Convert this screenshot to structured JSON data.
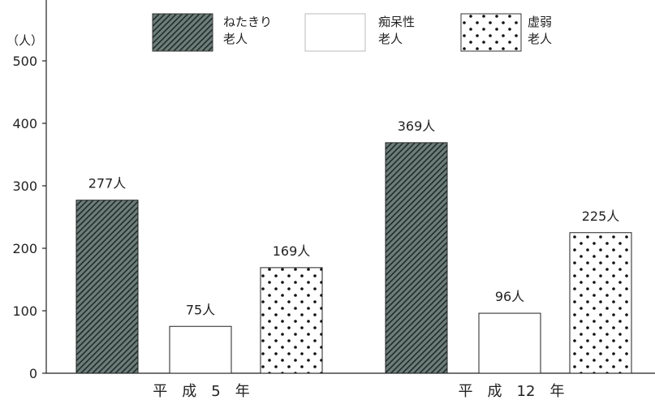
{
  "chart_data": {
    "type": "bar",
    "unit_label": "（人）",
    "y_ticks": [
      0,
      100,
      200,
      300,
      400,
      500
    ],
    "ylim": [
      0,
      560
    ],
    "categories": [
      "平　成　5　年",
      "平　成　12　年"
    ],
    "series": [
      {
        "name": "ねたきり老人",
        "legend_lines": [
          "ねたきり",
          "老人"
        ],
        "pattern": "hatch",
        "values": [
          277,
          369
        ]
      },
      {
        "name": "痴呆性老人",
        "legend_lines": [
          "痴呆性",
          "老人"
        ],
        "pattern": "plain",
        "values": [
          75,
          96
        ]
      },
      {
        "name": "虚弱老人",
        "legend_lines": [
          "虚弱",
          "老人"
        ],
        "pattern": "dots",
        "values": [
          169,
          225
        ]
      }
    ],
    "value_labels": [
      [
        "277人",
        "369人"
      ],
      [
        "75人",
        "96人"
      ],
      [
        "169人",
        "225人"
      ]
    ],
    "legend_position": "top"
  }
}
